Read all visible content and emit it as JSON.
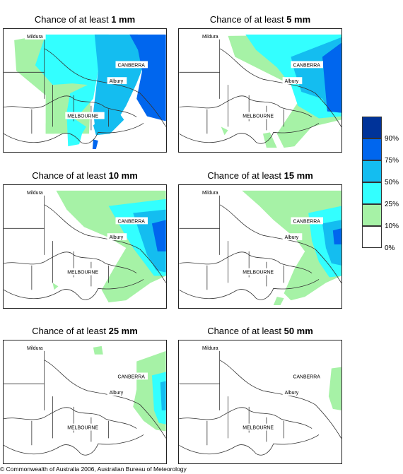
{
  "panels": [
    {
      "prefix": "Chance of at least ",
      "amount": "1 mm"
    },
    {
      "prefix": "Chance of at least ",
      "amount": "5 mm"
    },
    {
      "prefix": "Chance of at least ",
      "amount": "10 mm"
    },
    {
      "prefix": "Chance of at least ",
      "amount": "15 mm"
    },
    {
      "prefix": "Chance of at least ",
      "amount": "25 mm"
    },
    {
      "prefix": "Chance of at least ",
      "amount": "50 mm"
    }
  ],
  "places": {
    "mildura": "Mildura",
    "canberra": "CANBERRA",
    "albury": "Albury",
    "melbourne": "MELBOURNE"
  },
  "legend": {
    "labels": [
      "90%",
      "75%",
      "50%",
      "25%",
      "10%",
      "0%"
    ],
    "colors": [
      "#003399",
      "#0066ee",
      "#14bdf0",
      "#33ffff",
      "#a6f2a6",
      "#ffffff"
    ]
  },
  "footer": "© Commonwealth of Australia 2006, Australian Bureau of Meteorology"
}
